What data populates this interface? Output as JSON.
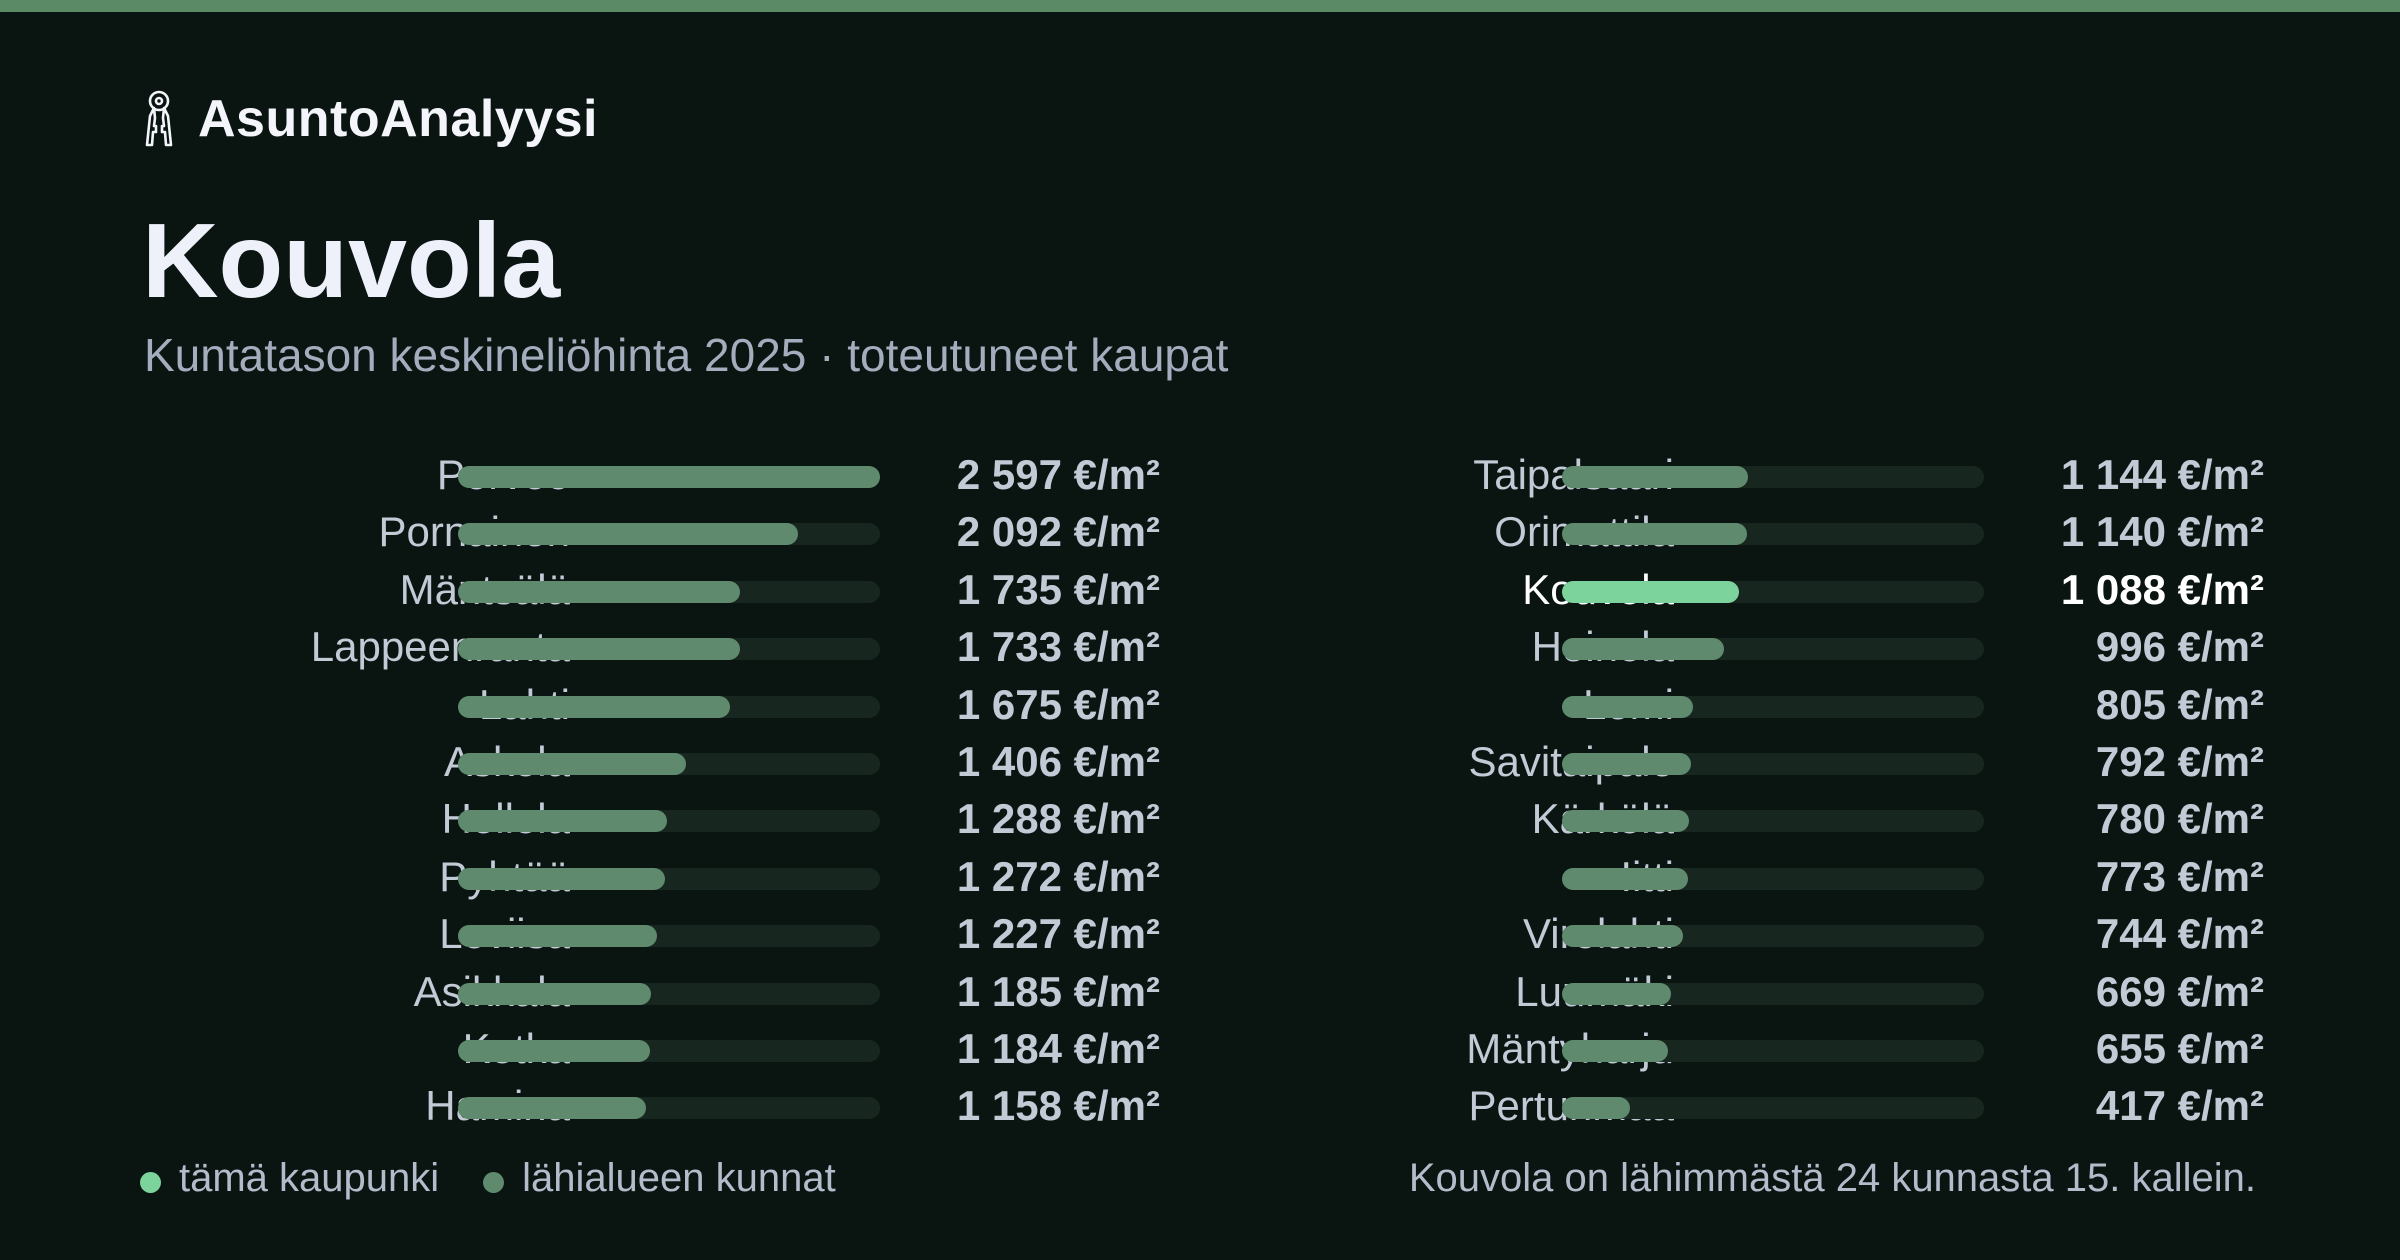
{
  "brand": {
    "name": "AsuntoAnalyysi",
    "icon": "keys-icon"
  },
  "header": {
    "title": "Kouvola",
    "subtitle": "Kuntatason keskineliöhinta 2025 · toteutuneet kaupat"
  },
  "colors": {
    "background": "#0a1512",
    "accent_bar": "#5b8a66",
    "highlight": "#7dd39c",
    "other": "#5f8a6e",
    "track": "#17261f"
  },
  "chart_data": {
    "type": "bar",
    "orientation": "horizontal",
    "title": "Kouvola",
    "subtitle": "Kuntatason keskineliöhinta 2025 · toteutuneet kaupat",
    "unit": "€/m²",
    "xlim": [
      0,
      2597
    ],
    "highlight": "Kouvola",
    "categories": [
      "Porvoo",
      "Pornainen",
      "Mäntsälä",
      "Lappeenranta",
      "Lahti",
      "Askola",
      "Hollola",
      "Pyhtää",
      "Loviisa",
      "Asikkala",
      "Kotka",
      "Hamina",
      "Taipalsaari",
      "Orimattila",
      "Kouvola",
      "Heinola",
      "Lemi",
      "Savitaipale",
      "Kärkölä",
      "Iitti",
      "Virolahti",
      "Luumäki",
      "Mäntyharju",
      "Pertunmaa"
    ],
    "values": [
      2597,
      2092,
      1735,
      1733,
      1675,
      1406,
      1288,
      1272,
      1227,
      1185,
      1184,
      1158,
      1144,
      1140,
      1088,
      996,
      805,
      792,
      780,
      773,
      744,
      669,
      655,
      417
    ],
    "value_labels": [
      "2 597 €/m²",
      "2 092 €/m²",
      "1 735 €/m²",
      "1 733 €/m²",
      "1 675 €/m²",
      "1 406 €/m²",
      "1 288 €/m²",
      "1 272 €/m²",
      "1 227 €/m²",
      "1 185 €/m²",
      "1 184 €/m²",
      "1 158 €/m²",
      "1 144 €/m²",
      "1 140 €/m²",
      "1 088 €/m²",
      "996 €/m²",
      "805 €/m²",
      "792 €/m²",
      "780 €/m²",
      "773 €/m²",
      "744 €/m²",
      "669 €/m²",
      "655 €/m²",
      "417 €/m²"
    ],
    "legend": [
      {
        "label": "tämä kaupunki",
        "color": "#7dd39c"
      },
      {
        "label": "lähialueen kunnat",
        "color": "#5f8a6e"
      }
    ],
    "legend_position": "bottom-left"
  },
  "footnote": "Kouvola on lähimmästä 24 kunnasta 15. kallein."
}
